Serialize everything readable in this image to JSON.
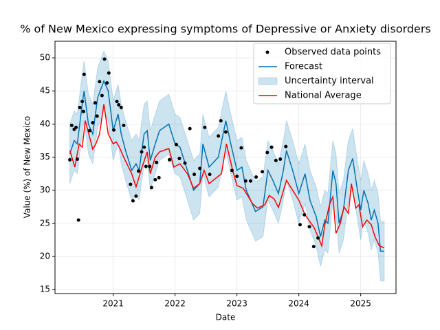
{
  "chart_data": {
    "type": "line",
    "title": "% of New Mexico expressing symptoms of Depressive or Anxiety disorders",
    "x_label": "Date",
    "y_label": "Value (%) of New Mexico",
    "xlim": [
      2020.06,
      2025.57
    ],
    "ylim": [
      14.4,
      52.5
    ],
    "xticks": [
      2021,
      2022,
      2023,
      2024,
      2025
    ],
    "yticks": [
      15,
      20,
      25,
      30,
      35,
      40,
      45,
      50
    ],
    "grid": true,
    "legend": "upper right",
    "series": [
      {
        "name": "Observed data points",
        "kind": "scatter",
        "color": "#000000",
        "x": [
          2020.3,
          2020.33,
          2020.37,
          2020.4,
          2020.42,
          2020.44,
          2020.46,
          2020.5,
          2020.52,
          2020.53,
          2020.62,
          2020.67,
          2020.71,
          2020.74,
          2020.78,
          2020.82,
          2020.86,
          2020.9,
          2020.93,
          2021.01,
          2021.06,
          2021.09,
          2021.13,
          2021.17,
          2021.28,
          2021.32,
          2021.37,
          2021.41,
          2021.46,
          2021.5,
          2021.53,
          2021.59,
          2021.62,
          2021.68,
          2021.7,
          2021.74,
          2021.91,
          2022.02,
          2022.07,
          2022.16,
          2022.24,
          2022.31,
          2022.4,
          2022.48,
          2022.56,
          2022.7,
          2022.74,
          2022.82,
          2022.92,
          2023.0,
          2023.07,
          2023.14,
          2023.22,
          2023.31,
          2023.41,
          2023.49,
          2023.56,
          2023.63,
          2023.7,
          2023.79,
          2024.02,
          2024.09,
          2024.17,
          2024.24,
          2024.31
        ],
        "values": [
          34.6,
          39.8,
          39.2,
          39.5,
          34.7,
          25.5,
          42.5,
          43.4,
          41.9,
          47.5,
          39.0,
          40.2,
          43.2,
          41.2,
          46.4,
          44.3,
          49.8,
          46.2,
          47.7,
          39.1,
          43.4,
          42.9,
          42.5,
          39.8,
          30.9,
          28.4,
          29.1,
          32.9,
          35.8,
          36.5,
          33.6,
          33.6,
          30.4,
          31.6,
          34.2,
          31.9,
          34.6,
          36.9,
          34.8,
          34.1,
          39.3,
          32.4,
          33.3,
          39.5,
          32.4,
          38.2,
          40.5,
          38.8,
          33.0,
          32.1,
          36.4,
          31.4,
          31.4,
          32.0,
          32.8,
          35.7,
          36.5,
          34.5,
          34.7,
          36.6,
          24.8,
          26.3,
          24.5,
          21.5,
          22.8
        ]
      },
      {
        "name": "Forecast",
        "kind": "line",
        "color": "#0072B2",
        "x": [
          2020.3,
          2020.37,
          2020.42,
          2020.5,
          2020.53,
          2020.6,
          2020.67,
          2020.75,
          2020.85,
          2020.92,
          2021.0,
          2021.08,
          2021.13,
          2021.2,
          2021.3,
          2021.37,
          2021.42,
          2021.5,
          2021.55,
          2021.6,
          2021.68,
          2021.75,
          2021.9,
          2022.0,
          2022.08,
          2022.2,
          2022.3,
          2022.4,
          2022.45,
          2022.55,
          2022.7,
          2022.82,
          2022.9,
          2023.0,
          2023.08,
          2023.15,
          2023.3,
          2023.42,
          2023.5,
          2023.58,
          2023.67,
          2023.75,
          2023.8,
          2023.9,
          2024.0,
          2024.1,
          2024.18,
          2024.28,
          2024.35,
          2024.42,
          2024.47,
          2024.55,
          2024.6,
          2024.65,
          2024.72,
          2024.8,
          2024.87,
          2024.93,
          2025.0,
          2025.05,
          2025.12,
          2025.17,
          2025.22,
          2025.28,
          2025.32,
          2025.38
        ],
        "values": [
          35.5,
          37.5,
          37,
          43,
          45,
          40,
          38.5,
          44,
          46.5,
          45,
          39,
          41.5,
          38.5,
          36,
          33,
          34,
          33,
          38.5,
          39,
          34.5,
          37,
          39,
          40,
          37,
          36.5,
          33,
          30,
          31,
          37,
          33.5,
          35,
          40.5,
          37,
          33,
          33.5,
          30,
          26.8,
          27.5,
          33,
          31.5,
          29.5,
          33,
          36,
          33,
          29.5,
          32.5,
          28.5,
          26,
          23,
          25.5,
          25,
          33,
          31,
          25,
          27,
          33,
          34.8,
          31,
          27,
          30,
          28,
          25.5,
          27,
          25,
          20.8,
          20.8
        ]
      },
      {
        "name": "Uncertainty interval",
        "kind": "band",
        "color": "#0072B2",
        "x": [
          2020.3,
          2020.37,
          2020.42,
          2020.5,
          2020.53,
          2020.6,
          2020.67,
          2020.75,
          2020.85,
          2020.92,
          2021.0,
          2021.08,
          2021.13,
          2021.2,
          2021.3,
          2021.37,
          2021.42,
          2021.5,
          2021.55,
          2021.6,
          2021.68,
          2021.75,
          2021.9,
          2022.0,
          2022.08,
          2022.2,
          2022.3,
          2022.4,
          2022.45,
          2022.55,
          2022.7,
          2022.82,
          2022.9,
          2023.0,
          2023.08,
          2023.15,
          2023.3,
          2023.42,
          2023.5,
          2023.58,
          2023.67,
          2023.75,
          2023.8,
          2023.9,
          2024.0,
          2024.1,
          2024.18,
          2024.28,
          2024.35,
          2024.42,
          2024.47,
          2024.55,
          2024.6,
          2024.65,
          2024.72,
          2024.8,
          2024.87,
          2024.93,
          2025.0,
          2025.05,
          2025.12,
          2025.17,
          2025.22,
          2025.28,
          2025.32,
          2025.38
        ],
        "upper": [
          40,
          42,
          41.5,
          47.5,
          49.5,
          44.5,
          43,
          48.5,
          51,
          49.5,
          43.5,
          46,
          43,
          40.5,
          37.5,
          38.5,
          37.5,
          43,
          43.5,
          39,
          41.5,
          43.5,
          44.5,
          41.5,
          41,
          37.5,
          34.5,
          35.5,
          41.5,
          38,
          39.5,
          45,
          41.5,
          37.5,
          38,
          34.5,
          31.3,
          32,
          37.5,
          36,
          34,
          37.5,
          40.5,
          37.5,
          34,
          37,
          33,
          30.5,
          27.5,
          30,
          29.5,
          37.5,
          35.5,
          29.5,
          31.5,
          37.5,
          39.3,
          35.5,
          31.5,
          34.5,
          32.5,
          30,
          31.5,
          29.5,
          25.3,
          25.3
        ],
        "lower": [
          31,
          33,
          32.5,
          38.5,
          40.5,
          35.5,
          34,
          39.5,
          42,
          40.5,
          34.5,
          37,
          34,
          31.5,
          28.5,
          29.5,
          28.5,
          34,
          34.5,
          30,
          32.5,
          34.5,
          35.5,
          32.5,
          32,
          28.5,
          25.5,
          26.5,
          32.5,
          29,
          30.5,
          36,
          32.5,
          28.5,
          29,
          25.5,
          22.3,
          23,
          28.5,
          27,
          25,
          28.5,
          31.5,
          28.5,
          25,
          28,
          24,
          21.5,
          18.5,
          21,
          20.5,
          28.5,
          26.5,
          20.5,
          22.5,
          28.5,
          30.3,
          26.5,
          22.5,
          25.5,
          23.5,
          21,
          22.5,
          20.5,
          16.3,
          16.3
        ]
      },
      {
        "name": "National Average",
        "kind": "line",
        "color": "#ff0000",
        "x": [
          2020.3,
          2020.38,
          2020.45,
          2020.5,
          2020.55,
          2020.62,
          2020.67,
          2020.72,
          2020.78,
          2020.85,
          2020.92,
          2021.0,
          2021.05,
          2021.1,
          2021.17,
          2021.3,
          2021.37,
          2021.45,
          2021.55,
          2021.6,
          2021.68,
          2021.75,
          2021.9,
          2021.98,
          2022.08,
          2022.2,
          2022.3,
          2022.4,
          2022.47,
          2022.55,
          2022.75,
          2022.83,
          2022.93,
          2023.0,
          2023.1,
          2023.25,
          2023.33,
          2023.45,
          2023.52,
          2023.6,
          2023.67,
          2023.8,
          2024.0,
          2024.1,
          2024.25,
          2024.33,
          2024.37,
          2024.42,
          2024.5,
          2024.55,
          2024.6,
          2024.67,
          2024.73,
          2024.8,
          2024.85,
          2024.92,
          2024.97,
          2025.03,
          2025.1,
          2025.17,
          2025.23,
          2025.3,
          2025.38
        ],
        "values": [
          36,
          33.5,
          37,
          36.5,
          40.5,
          38,
          36.2,
          37,
          38.5,
          43,
          38.5,
          37,
          37.3,
          36.5,
          35,
          32.5,
          30.5,
          33,
          35.8,
          32.5,
          35,
          35.8,
          36.3,
          33.5,
          34,
          32.5,
          30.3,
          31,
          33,
          31,
          32.5,
          37,
          33,
          30.7,
          30.3,
          28,
          27.3,
          27.8,
          29.2,
          28.7,
          27.4,
          31.5,
          28.5,
          26.3,
          24.3,
          22.5,
          21.6,
          24.8,
          28,
          29,
          23.5,
          25,
          27.5,
          26.5,
          31,
          27.3,
          27.8,
          24.5,
          25.5,
          24.8,
          23,
          21.6,
          21.3
        ]
      }
    ]
  }
}
